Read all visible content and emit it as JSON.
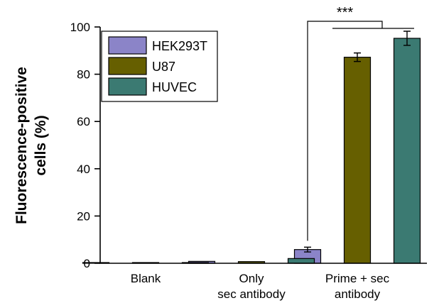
{
  "chart_data": {
    "type": "bar",
    "ylabel_lines": [
      "Fluorescence-positive",
      "cells (%)"
    ],
    "ylim": [
      0,
      100
    ],
    "yticks": [
      0,
      20,
      40,
      60,
      80,
      100
    ],
    "categories": [
      {
        "lines": [
          "Blank"
        ]
      },
      {
        "lines": [
          "Only",
          "sec antibody"
        ]
      },
      {
        "lines": [
          "Prime + sec",
          "antibody"
        ]
      }
    ],
    "series": [
      {
        "name": "HEK293T",
        "color": "#8b84c8",
        "values": [
          0.3,
          0.8,
          5.8
        ],
        "errors": [
          0,
          0,
          1.0
        ]
      },
      {
        "name": "U87",
        "color": "#665f00",
        "values": [
          0.3,
          0.7,
          87.2
        ],
        "errors": [
          0,
          0,
          1.8
        ]
      },
      {
        "name": "HUVEC",
        "color": "#3b7a72",
        "values": [
          0.3,
          2.0,
          95.2
        ],
        "errors": [
          0,
          0,
          3.0
        ]
      }
    ],
    "legend_position": "top-left",
    "grid": false,
    "annotations": [
      {
        "text": "***",
        "category_index": 2,
        "from_series": 0,
        "to_series": [
          1,
          2
        ]
      }
    ]
  }
}
